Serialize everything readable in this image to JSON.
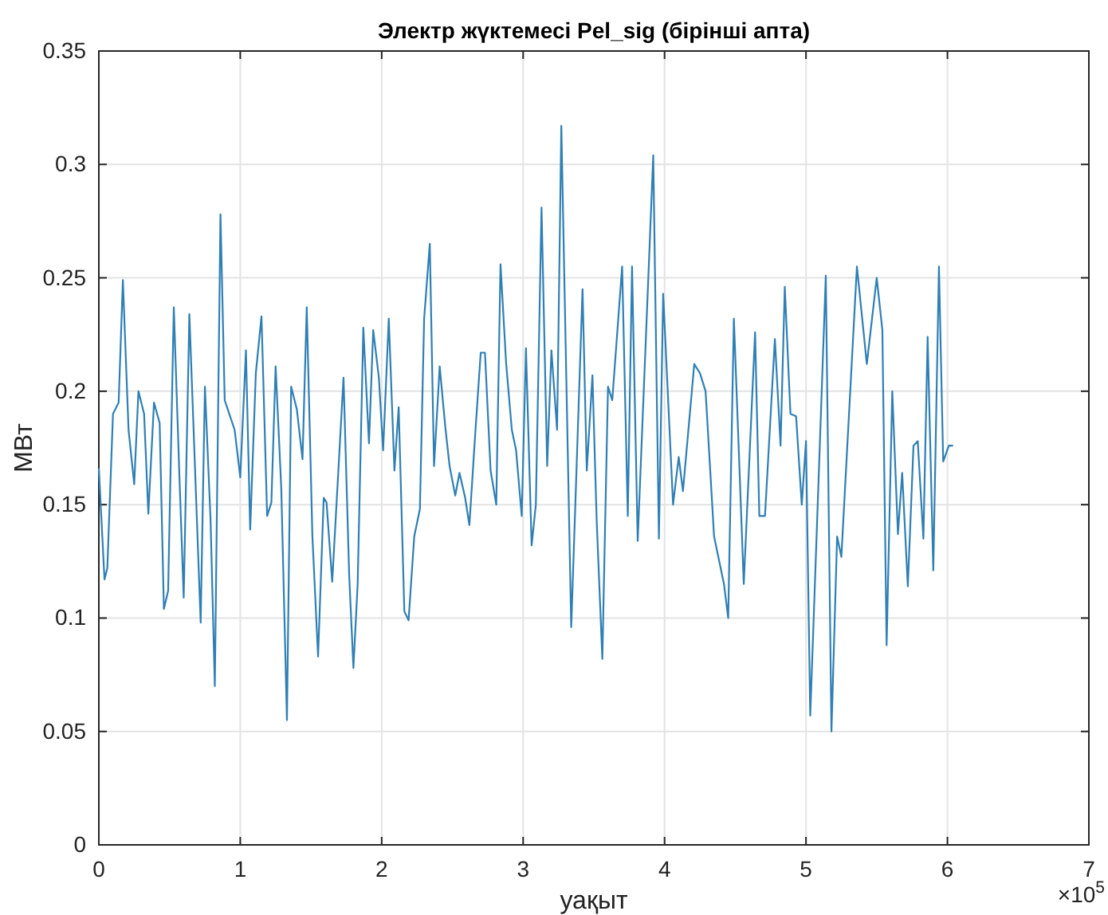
{
  "chart_data": {
    "type": "line",
    "title": "Электр жүктемесі Pel_sig (бірінші апта)",
    "xlabel": "уақыт",
    "ylabel": "МВт",
    "annotations": [
      "×10$^{5}$"
    ],
    "x": [
      0.0,
      0.04,
      0.06,
      0.1,
      0.14,
      0.17,
      0.21,
      0.25,
      0.28,
      0.32,
      0.35,
      0.39,
      0.43,
      0.46,
      0.49,
      0.53,
      0.57,
      0.6,
      0.64,
      0.68,
      0.72,
      0.75,
      0.79,
      0.82,
      0.86,
      0.89,
      0.96,
      1.0,
      1.04,
      1.07,
      1.11,
      1.15,
      1.19,
      1.22,
      1.25,
      1.29,
      1.33,
      1.36,
      1.4,
      1.44,
      1.47,
      1.51,
      1.55,
      1.59,
      1.61,
      1.65,
      1.73,
      1.77,
      1.8,
      1.83,
      1.87,
      1.91,
      1.94,
      1.98,
      2.01,
      2.05,
      2.09,
      2.12,
      2.16,
      2.19,
      2.23,
      2.27,
      2.3,
      2.34,
      2.37,
      2.41,
      2.45,
      2.48,
      2.52,
      2.55,
      2.59,
      2.62,
      2.66,
      2.7,
      2.73,
      2.77,
      2.81,
      2.84,
      2.88,
      2.92,
      2.95,
      2.99,
      3.02,
      3.06,
      3.09,
      3.13,
      3.17,
      3.2,
      3.24,
      3.27,
      3.34,
      3.42,
      3.45,
      3.49,
      3.52,
      3.56,
      3.6,
      3.63,
      3.7,
      3.74,
      3.77,
      3.81,
      3.92,
      3.96,
      3.99,
      4.06,
      4.1,
      4.13,
      4.21,
      4.25,
      4.29,
      4.35,
      4.42,
      4.45,
      4.49,
      4.56,
      4.64,
      4.67,
      4.71,
      4.78,
      4.82,
      4.85,
      4.89,
      4.93,
      4.97,
      5.0,
      5.03,
      5.14,
      5.18,
      5.22,
      5.25,
      5.36,
      5.43,
      5.5,
      5.54,
      5.57,
      5.61,
      5.65,
      5.68,
      5.72,
      5.76,
      5.79,
      5.83,
      5.86,
      5.9,
      5.94,
      5.97,
      6.01,
      6.04
    ],
    "series": [
      {
        "color": "#2f7fb4",
        "values": [
          0.166,
          0.117,
          0.122,
          0.19,
          0.195,
          0.249,
          0.183,
          0.159,
          0.2,
          0.19,
          0.146,
          0.195,
          0.186,
          0.104,
          0.112,
          0.237,
          0.162,
          0.109,
          0.234,
          0.166,
          0.098,
          0.202,
          0.143,
          0.07,
          0.278,
          0.196,
          0.183,
          0.162,
          0.218,
          0.139,
          0.208,
          0.233,
          0.145,
          0.151,
          0.211,
          0.157,
          0.055,
          0.202,
          0.192,
          0.17,
          0.237,
          0.136,
          0.083,
          0.153,
          0.151,
          0.116,
          0.206,
          0.119,
          0.078,
          0.115,
          0.228,
          0.177,
          0.227,
          0.206,
          0.174,
          0.232,
          0.165,
          0.193,
          0.103,
          0.099,
          0.136,
          0.148,
          0.232,
          0.265,
          0.167,
          0.211,
          0.184,
          0.167,
          0.154,
          0.164,
          0.153,
          0.141,
          0.18,
          0.217,
          0.217,
          0.165,
          0.15,
          0.256,
          0.212,
          0.183,
          0.174,
          0.145,
          0.219,
          0.132,
          0.15,
          0.281,
          0.167,
          0.218,
          0.183,
          0.317,
          0.096,
          0.245,
          0.165,
          0.207,
          0.143,
          0.082,
          0.202,
          0.196,
          0.255,
          0.145,
          0.255,
          0.134,
          0.304,
          0.135,
          0.243,
          0.15,
          0.171,
          0.156,
          0.212,
          0.208,
          0.2,
          0.136,
          0.115,
          0.1,
          0.232,
          0.115,
          0.226,
          0.145,
          0.145,
          0.223,
          0.176,
          0.246,
          0.19,
          0.189,
          0.15,
          0.178,
          0.057,
          0.251,
          0.05,
          0.136,
          0.127,
          0.255,
          0.212,
          0.25,
          0.227,
          0.088,
          0.2,
          0.137,
          0.164,
          0.114,
          0.176,
          0.178,
          0.135,
          0.224,
          0.121,
          0.255,
          0.169,
          0.176,
          0.176
        ]
      }
    ],
    "xlim": [
      0,
      7
    ],
    "xticks": [
      0,
      1,
      2,
      3,
      4,
      5,
      6,
      7
    ],
    "ylim": [
      0,
      0.35
    ],
    "yticks": [
      0,
      0.05,
      0.1,
      0.15,
      0.2,
      0.25,
      0.3,
      0.35
    ],
    "grid": true,
    "marker": "none",
    "line_style": "solid"
  }
}
